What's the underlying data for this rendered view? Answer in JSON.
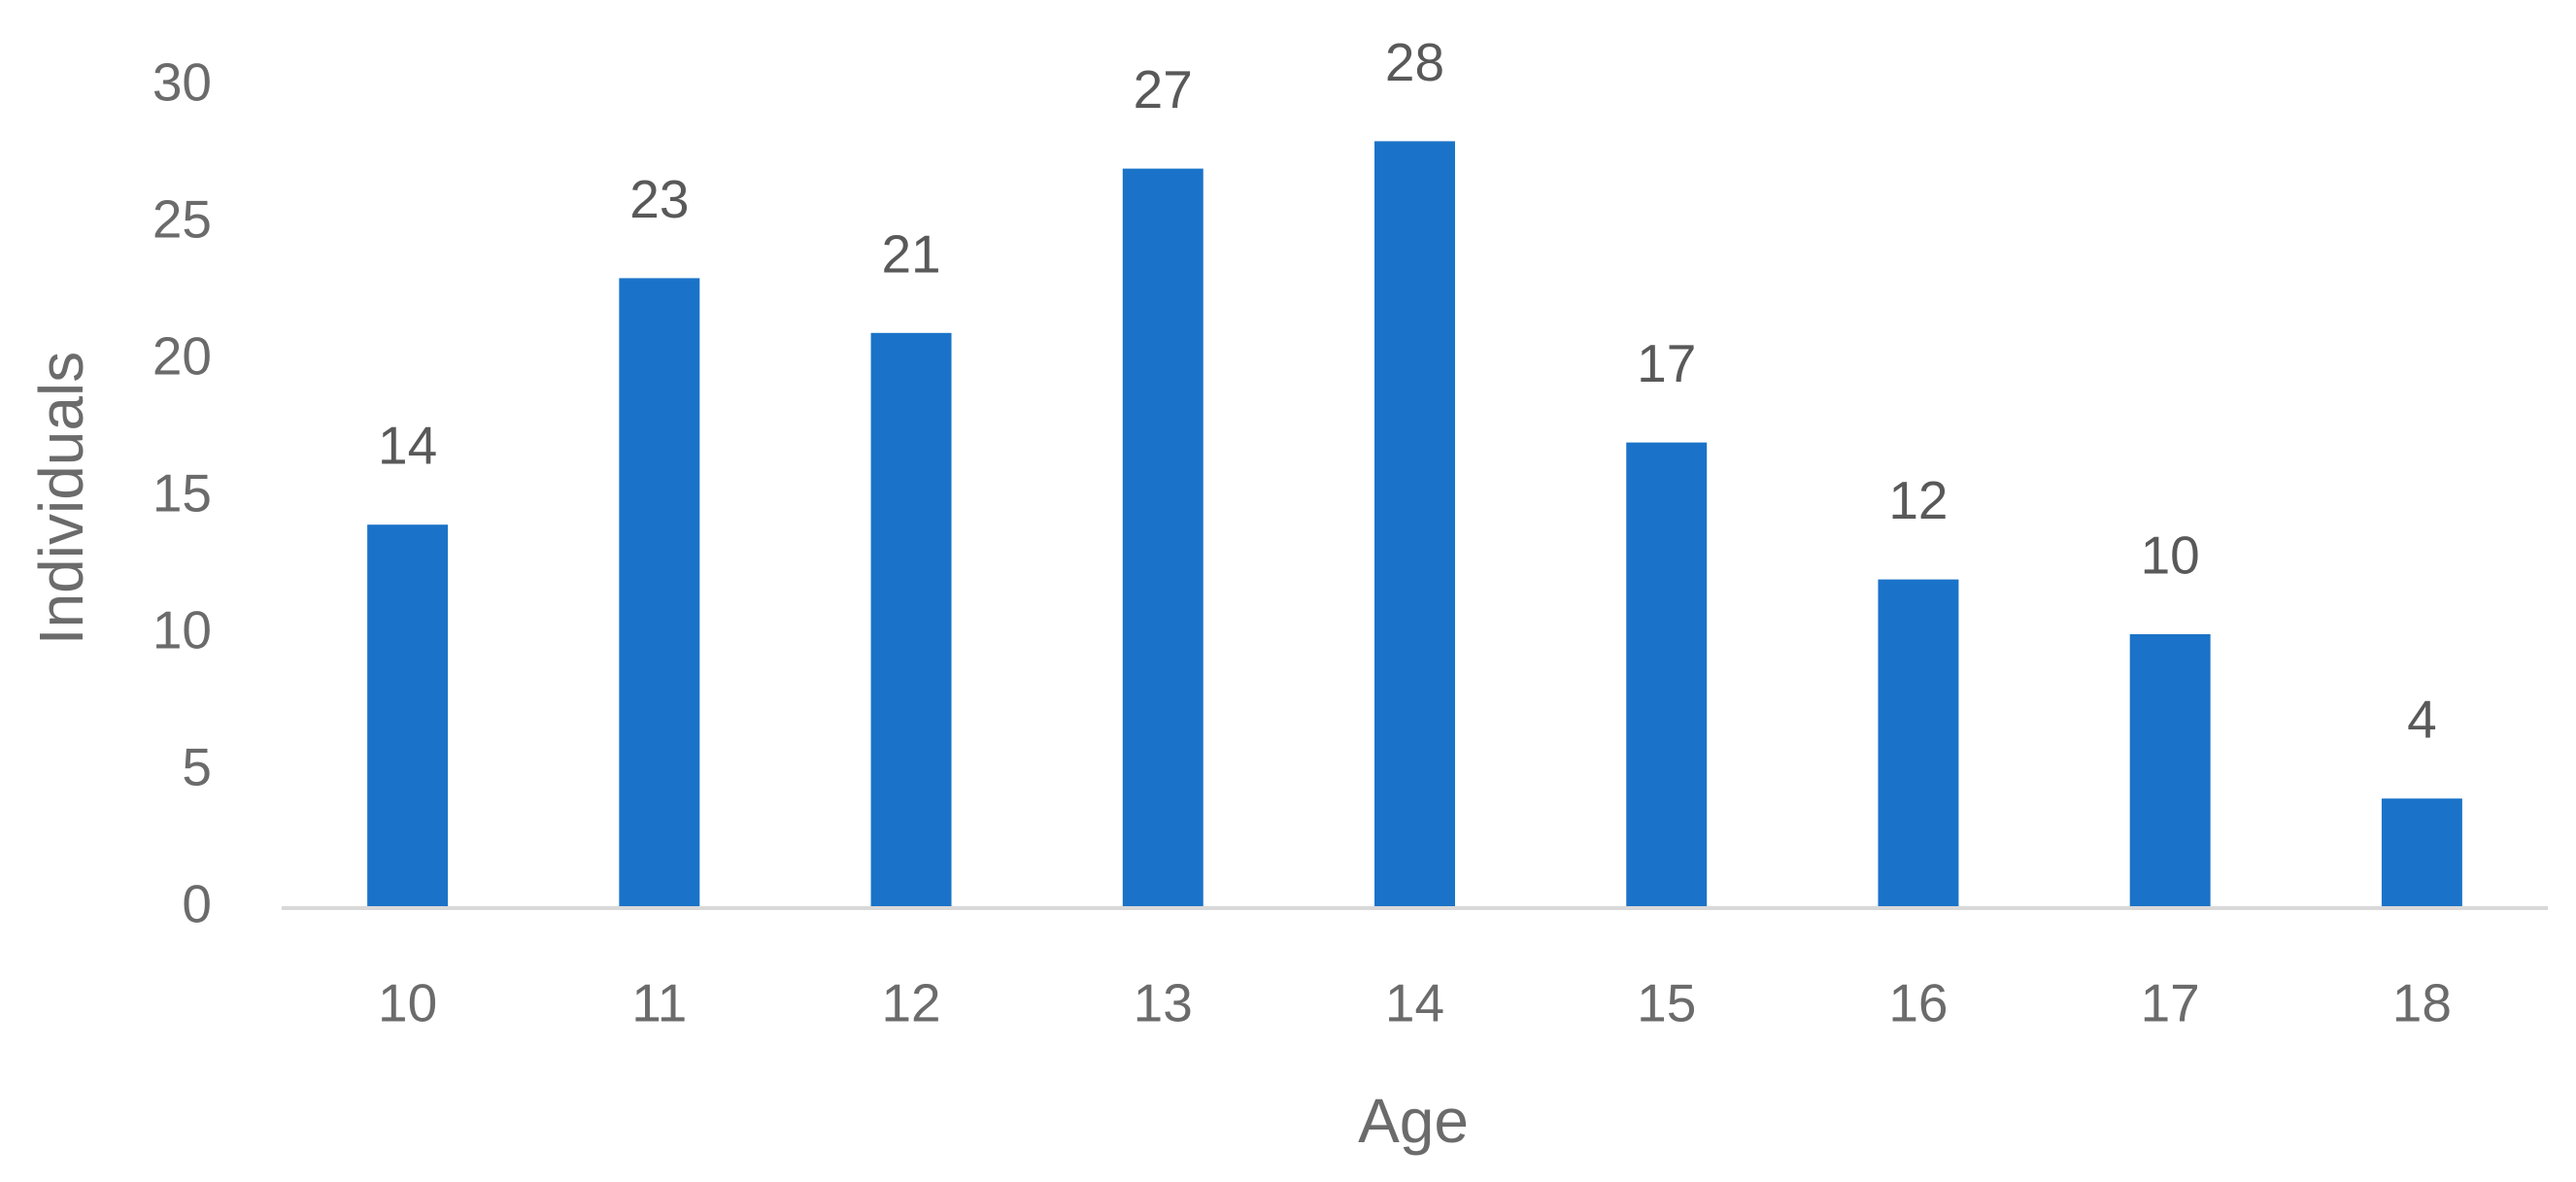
{
  "chart_data": {
    "type": "bar",
    "x_label": "Age",
    "y_label": "Individuals",
    "categories": [
      "10",
      "11",
      "12",
      "13",
      "14",
      "15",
      "16",
      "17",
      "18"
    ],
    "values": [
      14,
      23,
      21,
      27,
      28,
      17,
      12,
      10,
      4
    ],
    "color": "#1a73c8",
    "ylim": [
      0,
      30
    ],
    "yticks": [
      0,
      5,
      10,
      15,
      20,
      25,
      30
    ],
    "grid": false,
    "data_labels": true
  }
}
